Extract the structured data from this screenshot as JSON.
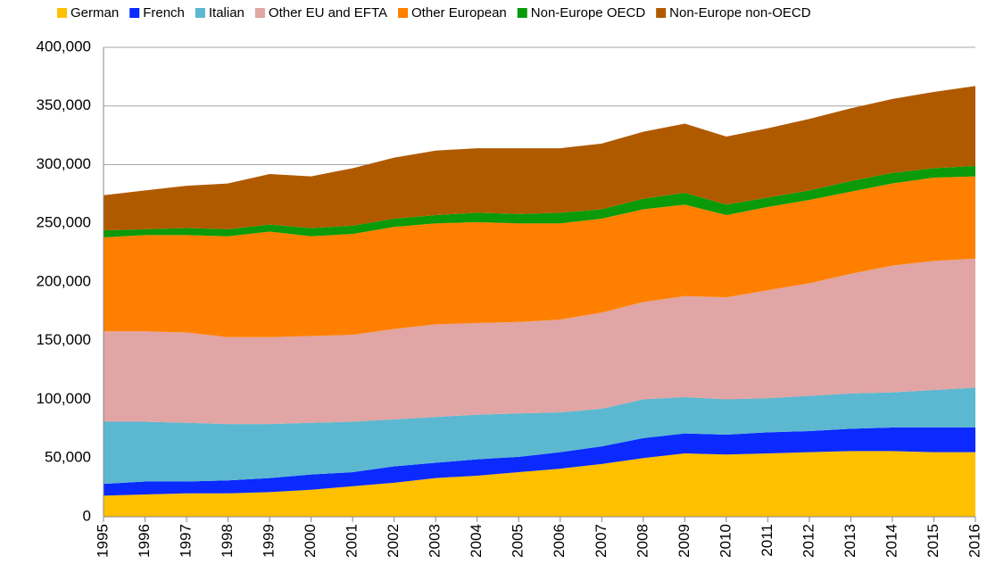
{
  "chart_data": {
    "type": "stacked_area",
    "categories": [
      "1995",
      "1996",
      "1997",
      "1998",
      "1999",
      "2000",
      "2001",
      "2002",
      "2003",
      "2004",
      "2005",
      "2006",
      "2007",
      "2008",
      "2009",
      "2010",
      "2011",
      "2012",
      "2013",
      "2014",
      "2015",
      "2016"
    ],
    "series": [
      {
        "name": "German",
        "color": "#ffc000",
        "values": [
          18000,
          19000,
          20000,
          20000,
          21000,
          23000,
          26000,
          29000,
          33000,
          35000,
          38000,
          41000,
          45000,
          50000,
          54000,
          53000,
          54000,
          55000,
          56000,
          56000,
          55000,
          55000
        ]
      },
      {
        "name": "French",
        "color": "#0a2aff",
        "values": [
          10000,
          11000,
          10000,
          11000,
          12000,
          13000,
          12000,
          14000,
          13000,
          14000,
          13000,
          14000,
          15000,
          17000,
          17000,
          17000,
          18000,
          18000,
          19000,
          20000,
          21000,
          21000
        ]
      },
      {
        "name": "Italian",
        "color": "#5bb8d0",
        "values": [
          53000,
          51000,
          50000,
          48000,
          46000,
          44000,
          43000,
          40000,
          39000,
          38000,
          37000,
          34000,
          32000,
          33000,
          31000,
          30000,
          29000,
          30000,
          30000,
          30000,
          32000,
          34000
        ]
      },
      {
        "name": "Other EU and EFTA",
        "color": "#e0a5a4",
        "values": [
          77000,
          77000,
          77000,
          74000,
          74000,
          74000,
          74000,
          77000,
          79000,
          78000,
          78000,
          79000,
          82000,
          83000,
          86000,
          87000,
          92000,
          96000,
          102000,
          108000,
          110000,
          110000
        ]
      },
      {
        "name": "Other European",
        "color": "#ff8000",
        "values": [
          80000,
          82000,
          83000,
          86000,
          90000,
          85000,
          86000,
          87000,
          86000,
          86000,
          84000,
          82000,
          80000,
          79000,
          78000,
          70000,
          71000,
          71000,
          70000,
          70000,
          71000,
          70000
        ]
      },
      {
        "name": "Non-Europe OECD",
        "color": "#0a9a0a",
        "values": [
          6000,
          5000,
          6000,
          6000,
          6000,
          7000,
          7000,
          7000,
          7000,
          8000,
          8000,
          9000,
          8000,
          9000,
          10000,
          9000,
          8000,
          8000,
          9000,
          9000,
          8000,
          9000
        ]
      },
      {
        "name": "Non-Europe non-OECD",
        "color": "#b05a00",
        "values": [
          30000,
          33000,
          36000,
          39000,
          43000,
          44000,
          49000,
          52000,
          55000,
          55000,
          56000,
          55000,
          56000,
          57000,
          59000,
          58000,
          59000,
          61000,
          62000,
          63000,
          65000,
          68000
        ]
      }
    ],
    "ylim": [
      0,
      400000
    ],
    "yticks": [
      0,
      {
        "value": 50000,
        "label": "50,000"
      },
      {
        "value": 100000,
        "label": "100,000"
      },
      {
        "value": 150000,
        "label": "150,000"
      },
      {
        "value": 200000,
        "label": "200,000"
      },
      {
        "value": 250000,
        "label": "250,000"
      },
      {
        "value": 300000,
        "label": "300,000"
      },
      {
        "value": 350000,
        "label": "350,000"
      },
      {
        "value": 400000,
        "label": "400,000"
      }
    ],
    "grid": true,
    "legend": "top"
  }
}
